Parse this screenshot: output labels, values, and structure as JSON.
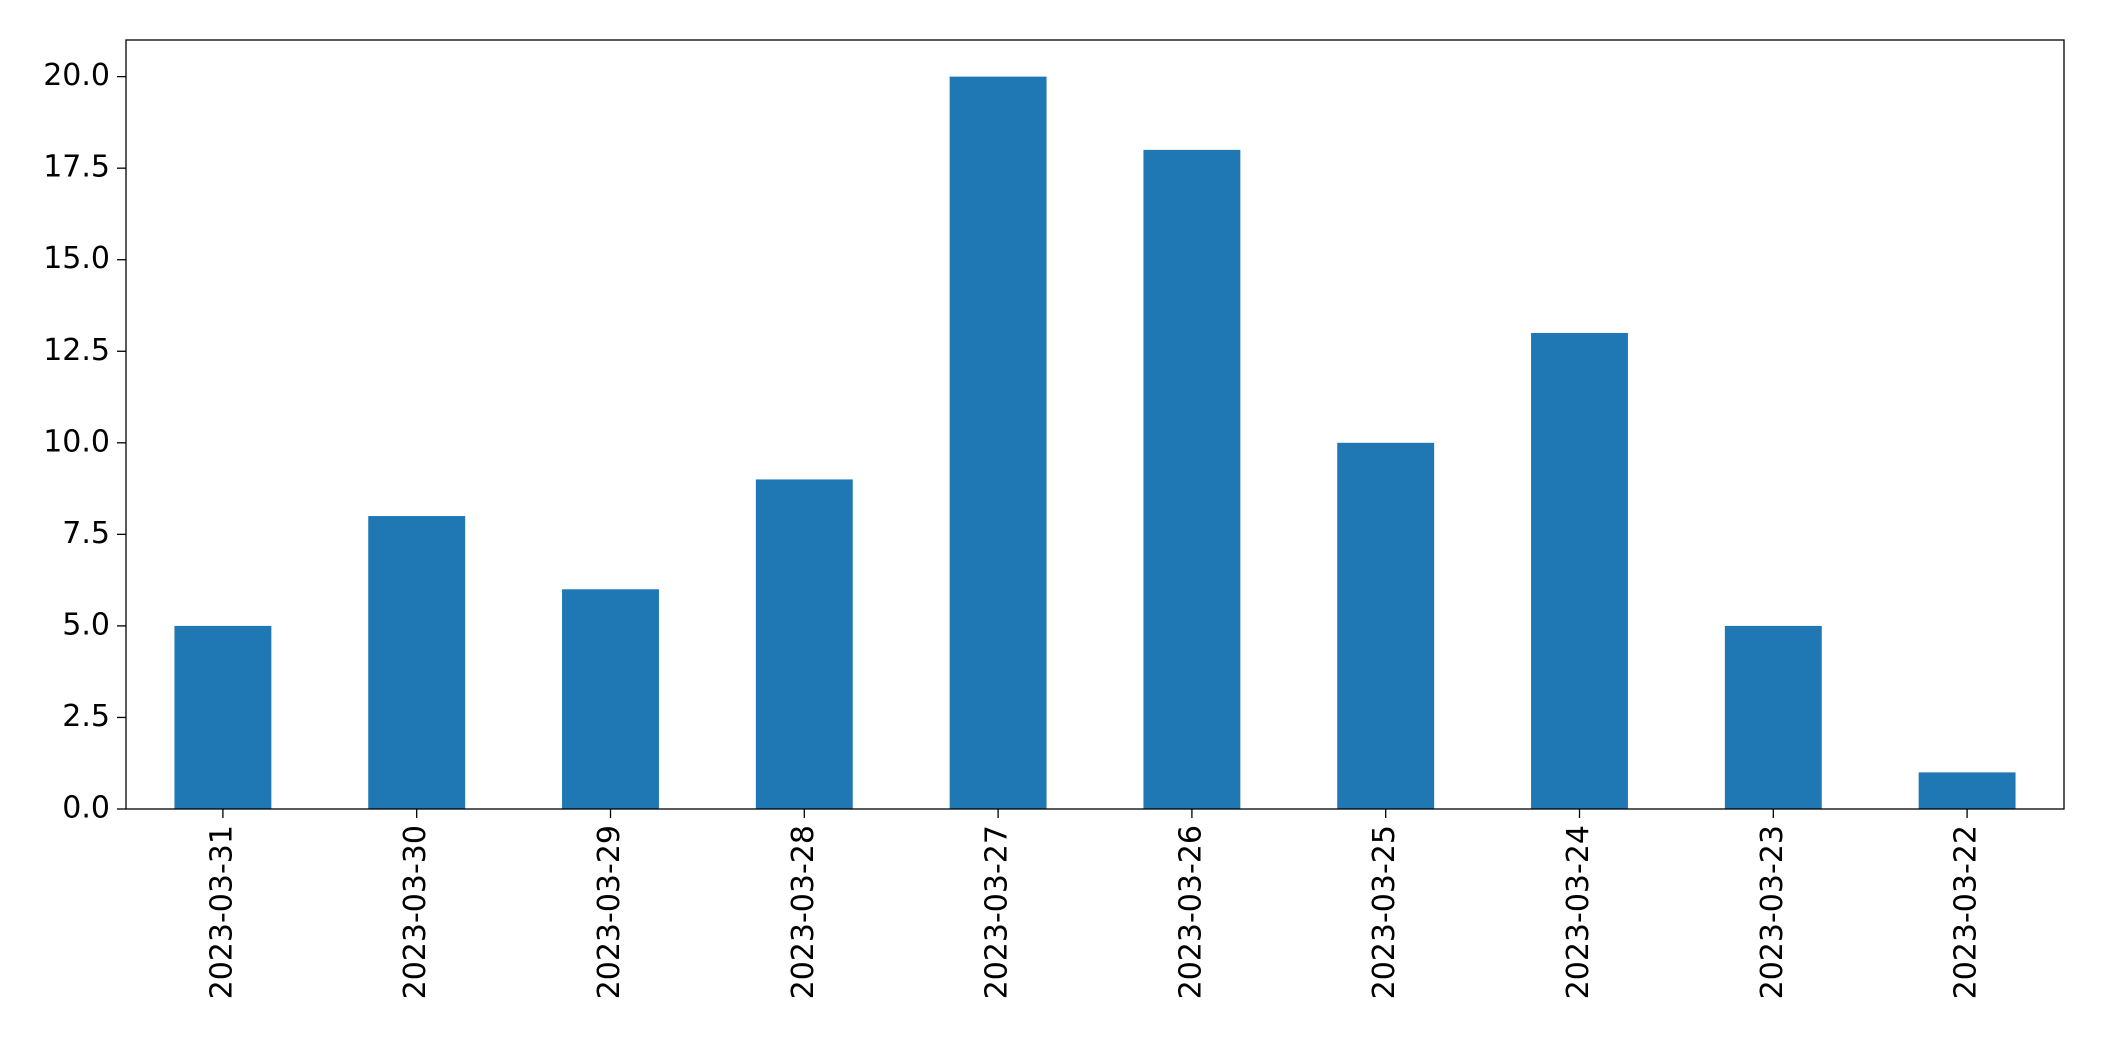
{
  "chart_data": {
    "type": "bar",
    "categories": [
      "2023-03-31",
      "2023-03-30",
      "2023-03-29",
      "2023-03-28",
      "2023-03-27",
      "2023-03-26",
      "2023-03-25",
      "2023-03-24",
      "2023-03-23",
      "2023-03-22"
    ],
    "values": [
      5,
      8,
      6,
      9,
      20,
      18,
      10,
      13,
      5,
      1
    ],
    "color": "#1f77b4",
    "ylim": [
      0,
      21
    ],
    "yticks": [
      {
        "value": 0,
        "label": "0.0"
      },
      2.5,
      {
        "value": 5,
        "label": "5.0"
      },
      7.5,
      {
        "value": 10,
        "label": "10.0"
      },
      12.5,
      {
        "value": 15,
        "label": "15.0"
      },
      17.5,
      {
        "value": 20,
        "label": "20.0"
      }
    ],
    "grid": false
  }
}
